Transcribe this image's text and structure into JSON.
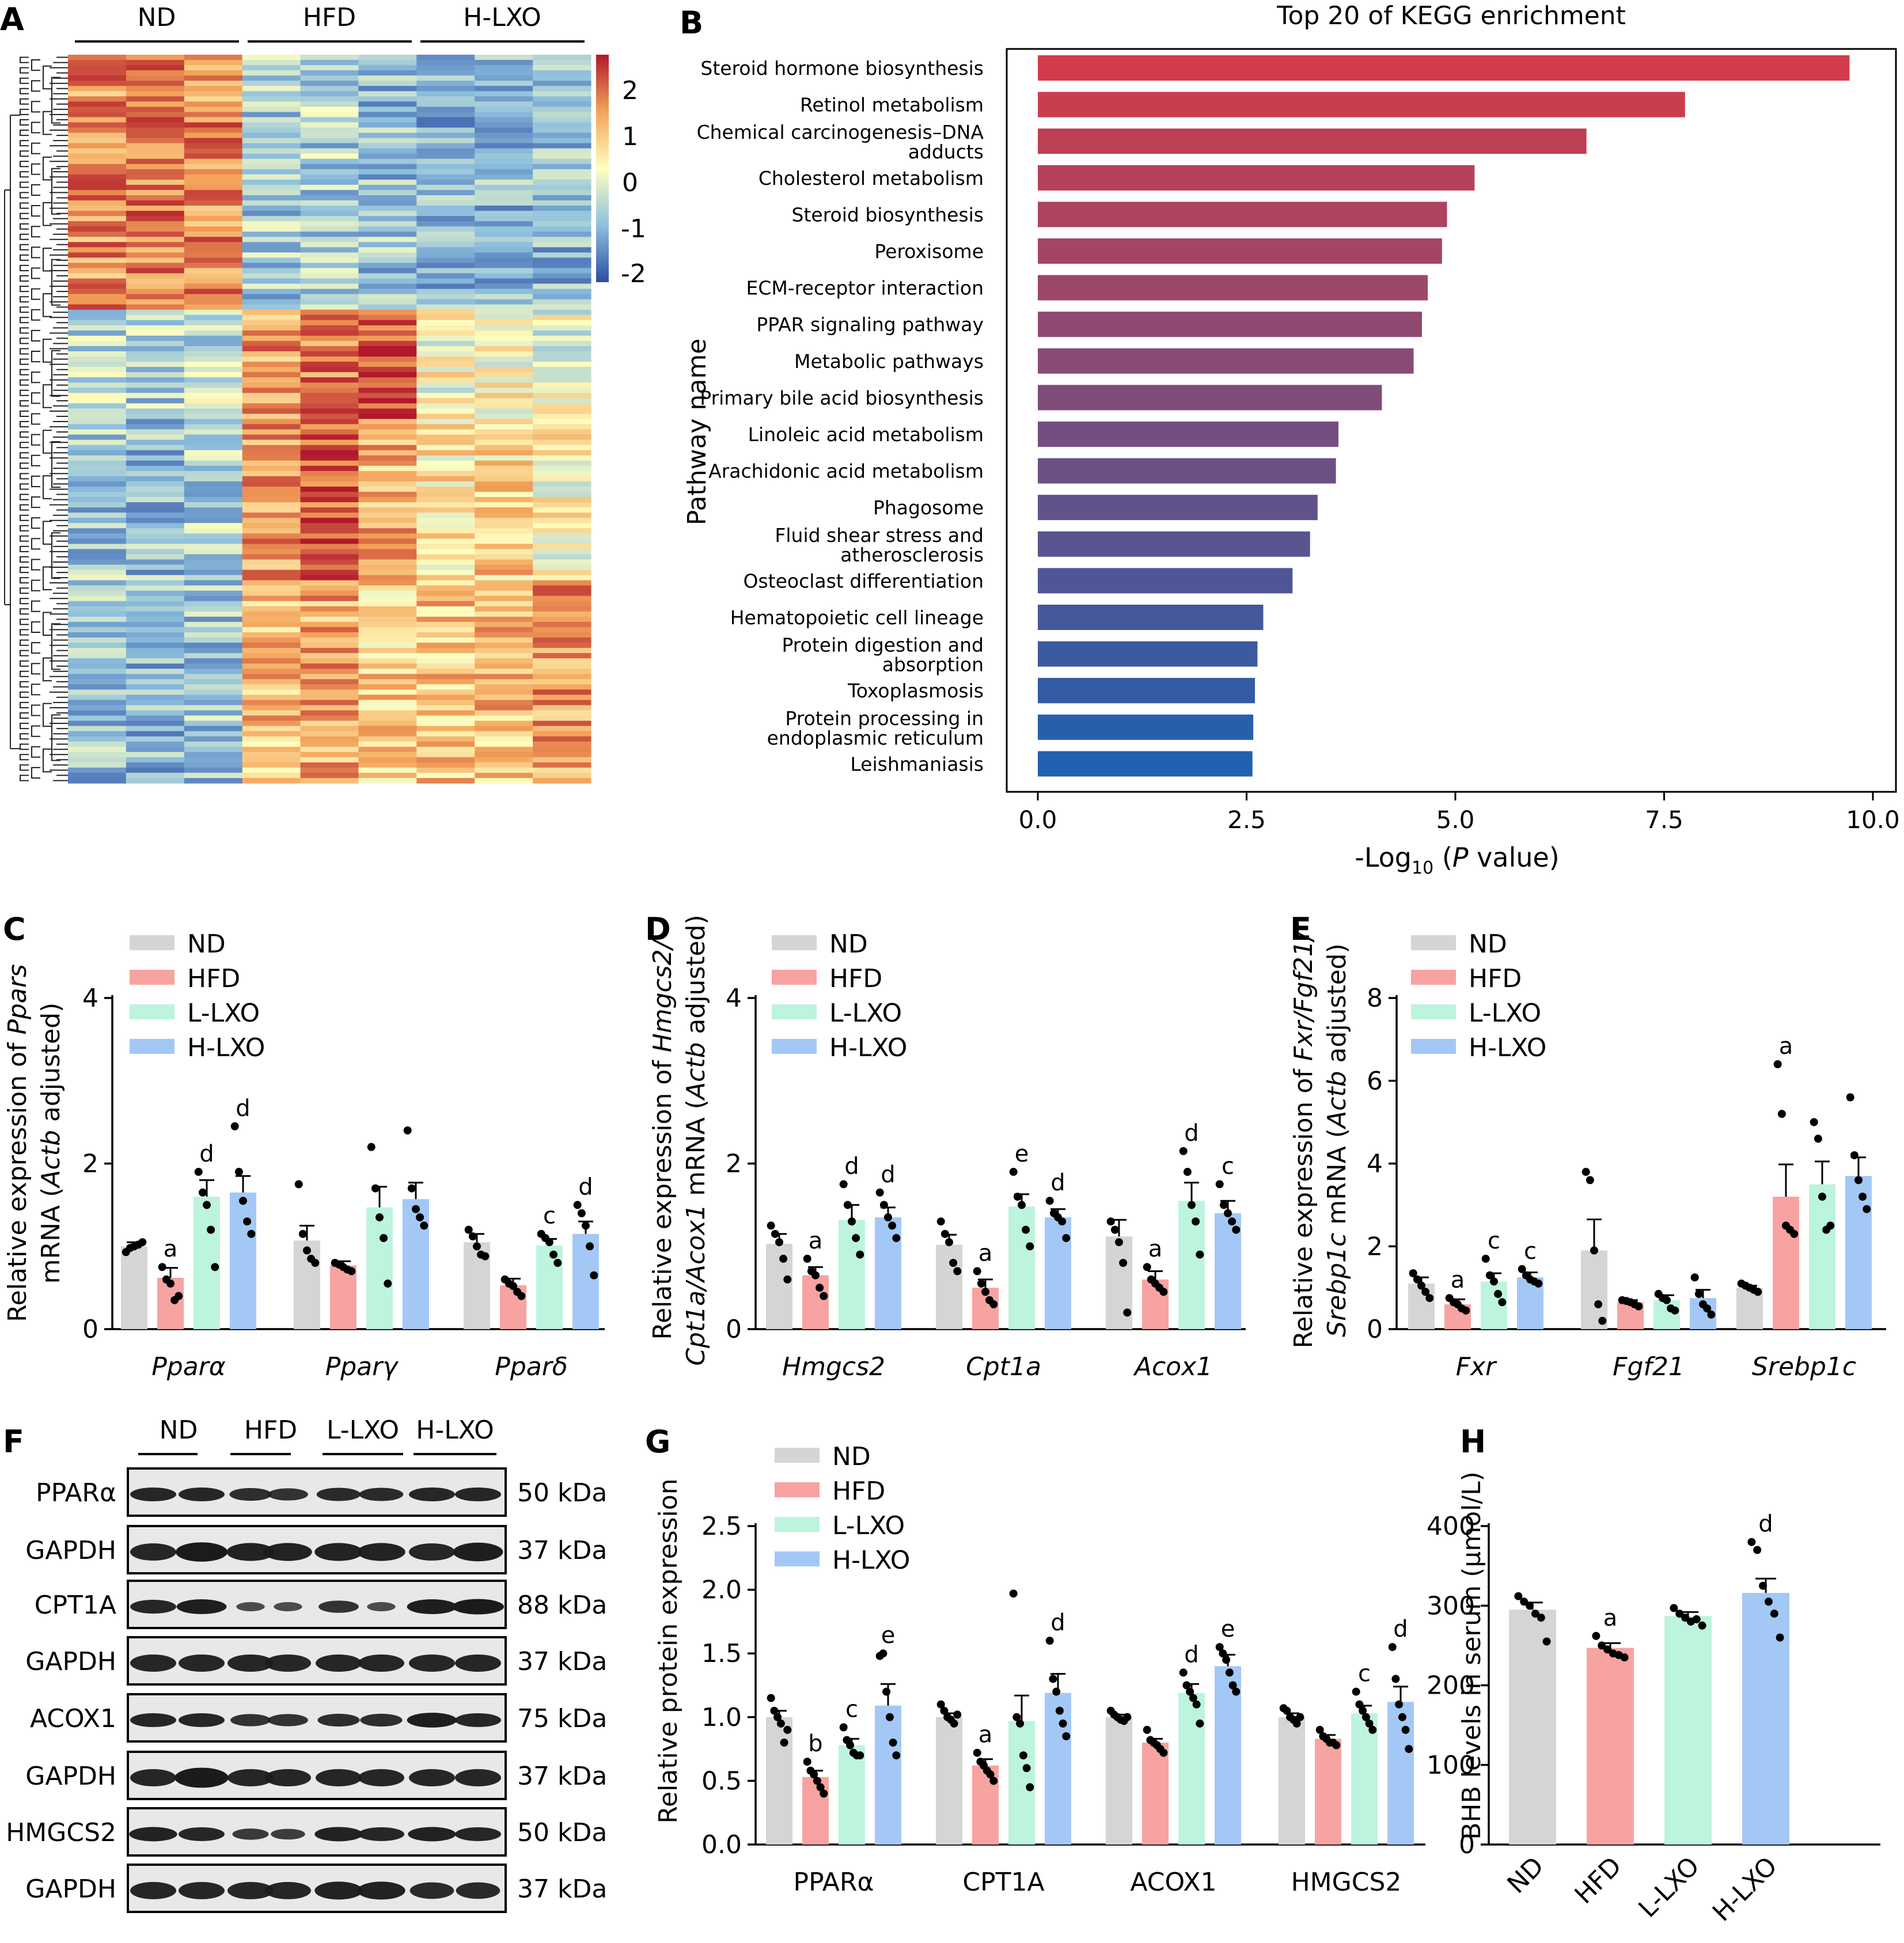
{
  "panel_letters": {
    "A": "A",
    "B": "B",
    "C": "C",
    "D": "D",
    "E": "E",
    "F": "F",
    "G": "G",
    "H": "H"
  },
  "colors": {
    "ND": "#d5d5d5",
    "HFD": "#f7a3a1",
    "L_LXO": "#bdf4dd",
    "H_LXO": "#a3c8f5",
    "heat_high": "#b2182b",
    "heat_mid": "#ffffbf",
    "heat_low": "#2c4da3",
    "kegg_top": "#d23b4a",
    "kegg_bottom": "#2060b0"
  },
  "heatmap": {
    "groups": [
      "ND",
      "HFD",
      "H-LXO"
    ],
    "colorbar_ticks": [
      "2",
      "1",
      "0",
      "-1",
      "-2"
    ]
  },
  "kegg": {
    "title": "Top 20 of KEGG enrichment",
    "ylabel": "Pathway name",
    "xlabel_pre": "-Log",
    "xlabel_sub": "10",
    "xlabel_paren_open": " (",
    "xlabel_var": "P",
    "xlabel_post": " value)",
    "xticks": [
      "0.0",
      "2.5",
      "5.0",
      "7.5",
      "10.0"
    ]
  },
  "legend4": [
    "ND",
    "HFD",
    "L-LXO",
    "H-LXO"
  ],
  "panelC": {
    "ylabel_l1_pre": "Relative expression of ",
    "ylabel_l1_it": "Ppars",
    "ylabel_l2_pre": "mRNA (",
    "ylabel_l2_it": "Actb",
    "ylabel_l2_post": " adjusted)",
    "yticks": [
      "0",
      "2",
      "4"
    ]
  },
  "panelD": {
    "ylabel_l1_pre": "Relative expression of ",
    "ylabel_l1_it": "Hmgcs2/",
    "ylabel_l2_it": "Cpt1a/Acox1",
    "ylabel_l2_mid": " mRNA (",
    "ylabel_l2_it2": "Actb",
    "ylabel_l2_post": " adjusted)",
    "yticks": [
      "0",
      "2",
      "4"
    ]
  },
  "panelE": {
    "ylabel_l1_pre": "Relative expression of ",
    "ylabel_l1_it": "Fxr/Fgf21/",
    "ylabel_l2_it": "Srebp1c",
    "ylabel_l2_mid": " mRNA (",
    "ylabel_l2_it2": "Actb",
    "ylabel_l2_post": " adjusted)",
    "yticks": [
      "0",
      "2",
      "4",
      "6",
      "8"
    ]
  },
  "panelF": {
    "groups": [
      "ND",
      "HFD",
      "L-LXO",
      "H-LXO"
    ],
    "bands": [
      {
        "name": "PPARα",
        "kda": "50 kDa"
      },
      {
        "name": "GAPDH",
        "kda": "37 kDa"
      },
      {
        "name": "CPT1A",
        "kda": "88 kDa"
      },
      {
        "name": "GAPDH",
        "kda": "37 kDa"
      },
      {
        "name": "ACOX1",
        "kda": "75 kDa"
      },
      {
        "name": "GAPDH",
        "kda": "37 kDa"
      },
      {
        "name": "HMGCS2",
        "kda": "50 kDa"
      },
      {
        "name": "GAPDH",
        "kda": "37 kDa"
      }
    ]
  },
  "panelG": {
    "ylabel": "Relative protein expression",
    "yticks": [
      "0.0",
      "0.5",
      "1.0",
      "1.5",
      "2.0",
      "2.5"
    ]
  },
  "panelH": {
    "ylabel": "BHB levels in serum (μmol/L)",
    "yticks": [
      "0",
      "100",
      "200",
      "300",
      "400"
    ]
  },
  "chart_data": [
    {
      "id": "B",
      "type": "bar",
      "orientation": "horizontal",
      "title": "Top 20 of KEGG enrichment",
      "xlabel": "-Log10 (P value)",
      "ylabel": "Pathway name",
      "xlim": [
        0,
        10
      ],
      "categories": [
        "Steroid hormone biosynthesis",
        "Retinol metabolism",
        "Chemical carcinogenesis–DNA adducts",
        "Cholesterol metabolism",
        "Steroid biosynthesis",
        "Peroxisome",
        "ECM-receptor interaction",
        "PPAR signaling pathway",
        "Metabolic pathways",
        "Primary bile acid biosynthesis",
        "Linoleic acid metabolism",
        "Arachidonic acid metabolism",
        "Phagosome",
        "Fluid shear stress and atherosclerosis",
        "Osteoclast differentiation",
        "Hematopoietic cell lineage",
        "Protein digestion and absorption",
        "Toxoplasmosis",
        "Protein processing in endoplasmic reticulum",
        "Leishmaniasis"
      ],
      "label_lines": [
        [
          "Steroid hormone biosynthesis"
        ],
        [
          "Retinol metabolism"
        ],
        [
          "Chemical carcinogenesis–DNA",
          "adducts"
        ],
        [
          "Cholesterol metabolism"
        ],
        [
          "Steroid biosynthesis"
        ],
        [
          "Peroxisome"
        ],
        [
          "ECM-receptor interaction"
        ],
        [
          "PPAR signaling pathway"
        ],
        [
          "Metabolic pathways"
        ],
        [
          "Primary bile acid biosynthesis"
        ],
        [
          "Linoleic acid metabolism"
        ],
        [
          "Arachidonic acid metabolism"
        ],
        [
          "Phagosome"
        ],
        [
          "Fluid shear stress and",
          "atherosclerosis"
        ],
        [
          "Osteoclast differentiation"
        ],
        [
          "Hematopoietic cell lineage"
        ],
        [
          "Protein digestion and",
          "absorption"
        ],
        [
          "Toxoplasmosis"
        ],
        [
          "Protein processing in",
          "endoplasmic reticulum"
        ],
        [
          "Leishmaniasis"
        ]
      ],
      "values": [
        9.72,
        7.75,
        6.57,
        5.23,
        4.9,
        4.84,
        4.67,
        4.6,
        4.5,
        4.12,
        3.6,
        3.57,
        3.35,
        3.26,
        3.05,
        2.7,
        2.63,
        2.6,
        2.58,
        2.57
      ]
    },
    {
      "id": "C",
      "type": "bar",
      "categories": [
        "Pparα",
        "Pparγ",
        "Pparδ"
      ],
      "ylim": [
        0,
        4
      ],
      "series": [
        {
          "name": "ND",
          "values": [
            1.0,
            1.07,
            1.05
          ],
          "sem": [
            0.05,
            0.18,
            0.1
          ]
        },
        {
          "name": "HFD",
          "values": [
            0.62,
            0.77,
            0.53
          ],
          "sem": [
            0.12,
            0.05,
            0.08
          ]
        },
        {
          "name": "L-LXO",
          "values": [
            1.6,
            1.47,
            1.01
          ],
          "sem": [
            0.2,
            0.25,
            0.08
          ]
        },
        {
          "name": "H-LXO",
          "values": [
            1.65,
            1.57,
            1.15
          ],
          "sem": [
            0.2,
            0.2,
            0.15
          ]
        }
      ],
      "points": [
        [
          [
            0.93,
            0.98,
            1.0,
            1.02,
            1.05
          ],
          [
            1.75,
            1.15,
            0.95,
            0.85,
            0.8
          ],
          [
            1.2,
            1.12,
            1.0,
            0.9,
            0.88
          ]
        ],
        [
          [
            0.75,
            0.6,
            0.55,
            0.35,
            0.4
          ],
          [
            0.8,
            0.78,
            0.75,
            0.72,
            0.7
          ],
          [
            0.6,
            0.55,
            0.52,
            0.45,
            0.4
          ]
        ],
        [
          [
            1.9,
            1.65,
            1.5,
            1.2,
            0.75
          ],
          [
            2.2,
            1.7,
            1.35,
            1.1,
            0.55
          ],
          [
            1.15,
            1.1,
            1.05,
            0.9,
            0.8
          ]
        ],
        [
          [
            2.45,
            1.9,
            1.55,
            1.3,
            1.15
          ],
          [
            2.4,
            1.7,
            1.45,
            1.35,
            1.25
          ],
          [
            1.5,
            1.4,
            1.25,
            1.0,
            0.65
          ]
        ]
      ],
      "annotations": [
        [
          "",
          "",
          ""
        ],
        [
          "a",
          "",
          ""
        ],
        [
          "d",
          "",
          "c"
        ],
        [
          "d",
          "",
          "d"
        ]
      ]
    },
    {
      "id": "D",
      "type": "bar",
      "categories": [
        "Hmgcs2",
        "Cpt1a",
        "Acox1"
      ],
      "ylim": [
        0,
        4
      ],
      "series": [
        {
          "name": "ND",
          "values": [
            1.03,
            1.02,
            1.12
          ],
          "sem": [
            0.12,
            0.12,
            0.2
          ]
        },
        {
          "name": "HFD",
          "values": [
            0.65,
            0.5,
            0.6
          ],
          "sem": [
            0.1,
            0.1,
            0.1
          ]
        },
        {
          "name": "L-LXO",
          "values": [
            1.32,
            1.48,
            1.55
          ],
          "sem": [
            0.18,
            0.15,
            0.22
          ]
        },
        {
          "name": "H-LXO",
          "values": [
            1.35,
            1.35,
            1.4
          ],
          "sem": [
            0.12,
            0.1,
            0.15
          ]
        }
      ],
      "points": [
        [
          [
            1.25,
            1.15,
            1.05,
            0.85,
            0.6
          ],
          [
            1.3,
            1.15,
            1.05,
            0.8,
            0.7
          ],
          [
            1.3,
            1.2,
            1.05,
            0.8,
            0.2
          ]
        ],
        [
          [
            0.85,
            0.7,
            0.65,
            0.5,
            0.4
          ],
          [
            0.7,
            0.55,
            0.45,
            0.35,
            0.3
          ],
          [
            0.75,
            0.6,
            0.55,
            0.5,
            0.45
          ]
        ],
        [
          [
            1.75,
            1.5,
            1.3,
            1.1,
            0.9
          ],
          [
            1.9,
            1.6,
            1.5,
            1.2,
            1.0
          ],
          [
            2.15,
            1.9,
            1.5,
            1.3,
            0.9
          ]
        ],
        [
          [
            1.65,
            1.5,
            1.35,
            1.25,
            1.1
          ],
          [
            1.55,
            1.4,
            1.35,
            1.3,
            1.1
          ],
          [
            1.75,
            1.5,
            1.4,
            1.3,
            1.2
          ]
        ]
      ],
      "annotations": [
        [
          "",
          "",
          ""
        ],
        [
          "a",
          "a",
          "a"
        ],
        [
          "d",
          "e",
          "d"
        ],
        [
          "d",
          "d",
          "c"
        ]
      ]
    },
    {
      "id": "E",
      "type": "bar",
      "categories": [
        "Fxr",
        "Fgf21",
        "Srebp1c"
      ],
      "ylim": [
        0,
        8
      ],
      "series": [
        {
          "name": "ND",
          "values": [
            1.1,
            1.9,
            1.0
          ],
          "sem": [
            0.15,
            0.75,
            0.05
          ]
        },
        {
          "name": "HFD",
          "values": [
            0.6,
            0.65,
            3.2
          ],
          "sem": [
            0.12,
            0.05,
            0.78
          ]
        },
        {
          "name": "L-LXO",
          "values": [
            1.15,
            0.7,
            3.5
          ],
          "sem": [
            0.2,
            0.12,
            0.55
          ]
        },
        {
          "name": "H-LXO",
          "values": [
            1.25,
            0.75,
            3.7
          ],
          "sem": [
            0.12,
            0.2,
            0.45
          ]
        }
      ],
      "points": [
        [
          [
            1.35,
            1.2,
            1.05,
            0.9,
            0.75
          ],
          [
            3.8,
            3.6,
            1.9,
            0.6,
            0.2
          ],
          [
            1.1,
            1.05,
            1.0,
            0.95,
            0.9
          ]
        ],
        [
          [
            0.75,
            0.65,
            0.6,
            0.5,
            0.45
          ],
          [
            0.7,
            0.68,
            0.65,
            0.6,
            0.55
          ],
          [
            6.4,
            5.2,
            2.5,
            2.4,
            2.3
          ]
        ],
        [
          [
            1.7,
            1.3,
            1.15,
            0.85,
            0.65
          ],
          [
            0.85,
            0.75,
            0.7,
            0.5,
            0.45
          ],
          [
            5.0,
            4.6,
            3.2,
            2.4,
            2.5
          ]
        ],
        [
          [
            1.45,
            1.3,
            1.2,
            1.15,
            1.1
          ],
          [
            1.25,
            0.85,
            0.6,
            0.5,
            0.35
          ],
          [
            5.6,
            4.2,
            3.6,
            3.2,
            2.9
          ]
        ]
      ],
      "annotations": [
        [
          "",
          "",
          ""
        ],
        [
          "a",
          "",
          "a"
        ],
        [
          "c",
          "",
          ""
        ],
        [
          "c",
          "",
          ""
        ]
      ]
    },
    {
      "id": "G",
      "type": "bar",
      "categories": [
        "PPARα",
        "CPT1A",
        "ACOX1",
        "HMGCS2"
      ],
      "ylim": [
        0,
        2.5
      ],
      "ylabel": "Relative protein expression",
      "series": [
        {
          "name": "ND",
          "values": [
            1.0,
            1.0,
            1.0,
            1.0
          ],
          "sem": [
            0.05,
            0.03,
            0.02,
            0.03
          ]
        },
        {
          "name": "HFD",
          "values": [
            0.53,
            0.62,
            0.8,
            0.83
          ],
          "sem": [
            0.05,
            0.05,
            0.03,
            0.03
          ]
        },
        {
          "name": "L-LXO",
          "values": [
            0.78,
            0.97,
            1.19,
            1.03
          ],
          "sem": [
            0.05,
            0.2,
            0.07,
            0.06
          ]
        },
        {
          "name": "H-LXO",
          "values": [
            1.09,
            1.19,
            1.4,
            1.12
          ],
          "sem": [
            0.17,
            0.15,
            0.09,
            0.12
          ]
        }
      ],
      "points": [
        [
          [
            1.15,
            1.05,
            1.0,
            0.95,
            0.8,
            0.9
          ],
          [
            1.1,
            1.05,
            1.0,
            0.98,
            0.95,
            1.02
          ],
          [
            1.05,
            1.02,
            1.0,
            0.98,
            0.97,
            1.0
          ],
          [
            1.07,
            1.05,
            1.0,
            0.98,
            0.95,
            1.0
          ]
        ],
        [
          [
            0.65,
            0.58,
            0.55,
            0.5,
            0.45,
            0.4
          ],
          [
            0.72,
            0.65,
            0.62,
            0.58,
            0.55,
            0.5
          ],
          [
            0.9,
            0.82,
            0.8,
            0.78,
            0.75,
            0.72
          ],
          [
            0.9,
            0.85,
            0.83,
            0.8,
            0.8,
            0.78
          ]
        ],
        [
          [
            0.92,
            0.82,
            0.78,
            0.72,
            0.7,
            0.7
          ],
          [
            1.97,
            1.0,
            0.95,
            0.7,
            0.6,
            0.45
          ],
          [
            1.35,
            1.25,
            1.2,
            1.15,
            1.1,
            0.95
          ],
          [
            1.2,
            1.1,
            1.05,
            1.0,
            0.95,
            0.9
          ]
        ],
        [
          [
            1.48,
            1.5,
            1.2,
            1.0,
            0.8,
            0.7
          ],
          [
            1.6,
            1.3,
            1.2,
            1.05,
            0.95,
            0.85
          ],
          [
            1.55,
            1.5,
            1.45,
            1.35,
            1.25,
            1.2
          ],
          [
            1.55,
            1.3,
            1.1,
            1.0,
            0.9,
            0.75
          ]
        ]
      ],
      "annotations": [
        [
          "",
          "",
          "",
          ""
        ],
        [
          "b",
          "a",
          "",
          ""
        ],
        [
          "c",
          "",
          "d",
          "c"
        ],
        [
          "e",
          "d",
          "e",
          "d"
        ]
      ]
    },
    {
      "id": "H",
      "type": "bar",
      "categories": [
        "ND",
        "HFD",
        "L-LXO",
        "H-LXO"
      ],
      "ylim": [
        0,
        400
      ],
      "ylabel": "BHB levels in serum (μmol/L)",
      "values": [
        295,
        247,
        287,
        316
      ],
      "sem": [
        9,
        6,
        5,
        18
      ],
      "points": [
        [
          312,
          305,
          300,
          290,
          285,
          255
        ],
        [
          262,
          250,
          245,
          240,
          238,
          235
        ],
        [
          297,
          290,
          285,
          280,
          283,
          275
        ],
        [
          380,
          370,
          325,
          305,
          290,
          260
        ]
      ],
      "annotations": [
        "",
        "a",
        "",
        "d"
      ]
    }
  ]
}
